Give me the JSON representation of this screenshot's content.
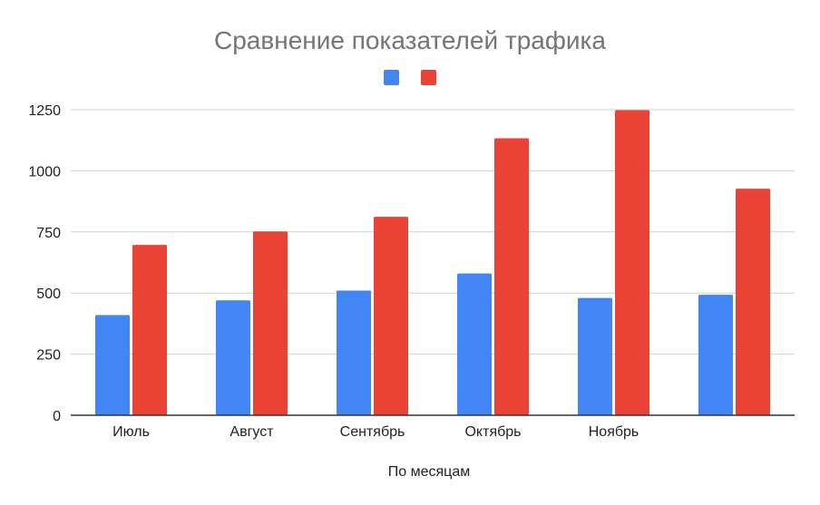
{
  "chart_data": {
    "type": "bar",
    "title": "Сравнение показателей трафика",
    "xlabel": "По месяцам",
    "ylabel": "",
    "categories": [
      "Июль",
      "Август",
      "Сентябрь",
      "Октябрь",
      "Ноябрь",
      ""
    ],
    "series": [
      {
        "color": "#4285f4",
        "values": [
          410,
          470,
          510,
          580,
          480,
          493
        ]
      },
      {
        "color": "#ea4335",
        "values": [
          697,
          752,
          812,
          1133,
          1248,
          927
        ]
      }
    ],
    "ylim": [
      0,
      1250
    ],
    "yticks": [
      0,
      250,
      500,
      750,
      1000,
      1250
    ],
    "grid": true,
    "legend": "top-center"
  }
}
